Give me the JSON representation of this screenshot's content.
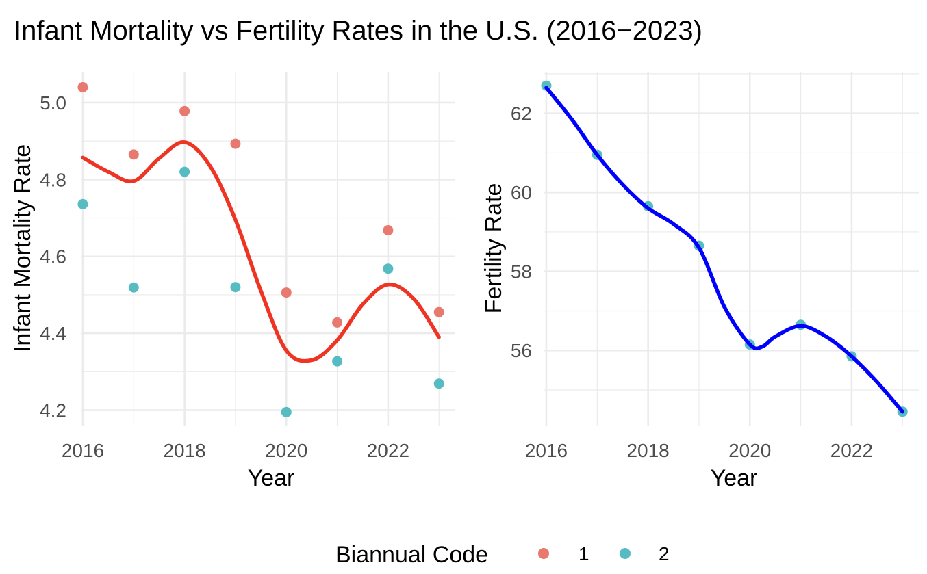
{
  "title": "Infant Mortality vs Fertility Rates in the U.S. (2016−2023)",
  "colors": {
    "group1": "#E8796F",
    "group2": "#56BCC2",
    "smooth_left": "#EE3524",
    "smooth_right": "#0000FF",
    "grid": "#EBEBEB"
  },
  "legend": {
    "title": "Biannual Code",
    "items": [
      {
        "label": "1",
        "group": "1"
      },
      {
        "label": "2",
        "group": "2"
      }
    ]
  },
  "chart_data": [
    {
      "type": "scatter",
      "xlabel": "Year",
      "ylabel": "Infant Mortality Rate",
      "xlim": [
        2015.96,
        2023.32
      ],
      "ylim": [
        4.16,
        5.08
      ],
      "x_ticks": [
        2016,
        2018,
        2020,
        2022
      ],
      "x_tick_labels": [
        "2016",
        "2018",
        "2020",
        "2022"
      ],
      "y_ticks": [
        4.2,
        4.4,
        4.6,
        4.8,
        5.0
      ],
      "y_tick_labels": [
        "4.2",
        "4.4",
        "4.6",
        "4.8",
        "5.0"
      ],
      "series": [
        {
          "name": "1",
          "x": [
            2016,
            2017,
            2018,
            2019,
            2020,
            2021,
            2022,
            2023
          ],
          "y": [
            5.04,
            4.865,
            4.978,
            4.893,
            4.506,
            4.428,
            4.668,
            4.455
          ]
        },
        {
          "name": "2",
          "x": [
            2016,
            2017,
            2018,
            2019,
            2020,
            2021,
            2022,
            2023
          ],
          "y": [
            4.736,
            4.519,
            4.82,
            4.52,
            4.195,
            4.327,
            4.568,
            4.269
          ]
        }
      ],
      "smooth": {
        "x": [
          2016,
          2016.5,
          2017,
          2017.5,
          2018,
          2018.5,
          2019,
          2019.5,
          2020,
          2020.5,
          2021,
          2021.5,
          2022,
          2022.5,
          2023
        ],
        "y": [
          4.857,
          4.82,
          4.796,
          4.855,
          4.897,
          4.835,
          4.695,
          4.51,
          4.355,
          4.33,
          4.382,
          4.475,
          4.527,
          4.49,
          4.39
        ]
      }
    },
    {
      "type": "scatter",
      "xlabel": "Year",
      "ylabel": "Fertility Rate",
      "xlim": [
        2015.96,
        2023.32
      ],
      "ylim": [
        54.1,
        63.05
      ],
      "x_ticks": [
        2016,
        2018,
        2020,
        2022
      ],
      "x_tick_labels": [
        "2016",
        "2018",
        "2020",
        "2022"
      ],
      "y_ticks": [
        56,
        58,
        60,
        62
      ],
      "y_tick_labels": [
        "56",
        "58",
        "60",
        "62"
      ],
      "series": [
        {
          "name": "2",
          "x": [
            2016,
            2017,
            2018,
            2019,
            2020,
            2021,
            2022,
            2023
          ],
          "y": [
            62.7,
            60.95,
            59.65,
            58.65,
            56.15,
            56.65,
            55.85,
            54.45
          ]
        }
      ],
      "smooth": {
        "x": [
          2016,
          2016.5,
          2017,
          2017.5,
          2018,
          2018.5,
          2019,
          2019.5,
          2020,
          2020.25,
          2020.5,
          2021,
          2021.5,
          2022,
          2022.5,
          2023
        ],
        "y": [
          62.65,
          61.85,
          60.95,
          60.2,
          59.6,
          59.2,
          58.6,
          57.1,
          56.15,
          56.1,
          56.35,
          56.62,
          56.35,
          55.85,
          55.2,
          54.45
        ]
      }
    }
  ]
}
